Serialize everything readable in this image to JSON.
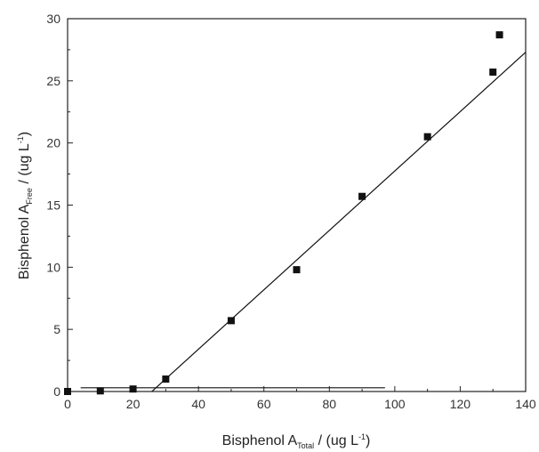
{
  "chart_data": {
    "type": "scatter",
    "xlabel": {
      "main": "Bisphenol A",
      "sub": "Total",
      "unit_pre": " / (ug L",
      "sup": "-1",
      "unit_post": ")"
    },
    "ylabel": {
      "main": "Bisphenol A",
      "sub": "Free",
      "unit_pre": " / (ug L",
      "sup": "-1",
      "unit_post": ")"
    },
    "xlim": [
      0,
      140
    ],
    "ylim": [
      0,
      30
    ],
    "x_ticks": [
      0,
      20,
      40,
      60,
      80,
      100,
      120,
      140
    ],
    "y_ticks": [
      0,
      5,
      10,
      15,
      20,
      25,
      30
    ],
    "grid": false,
    "series": [
      {
        "type": "scatter",
        "marker": "square",
        "color": "#111111",
        "points": [
          {
            "x": 0,
            "y": 0.0
          },
          {
            "x": 10,
            "y": 0.05
          },
          {
            "x": 20,
            "y": 0.2
          },
          {
            "x": 30,
            "y": 1.0
          },
          {
            "x": 50,
            "y": 5.7
          },
          {
            "x": 70,
            "y": 9.8
          },
          {
            "x": 90,
            "y": 15.7
          },
          {
            "x": 110,
            "y": 20.5
          },
          {
            "x": 130,
            "y": 25.7
          },
          {
            "x": 132,
            "y": 28.7
          }
        ]
      }
    ],
    "lines": [
      {
        "type": "line",
        "color": "#111111",
        "x": [
          4,
          97
        ],
        "y": [
          0.3,
          0.3
        ]
      },
      {
        "type": "line",
        "color": "#111111",
        "x": [
          24.5,
          140
        ],
        "y": [
          -0.3,
          27.3
        ]
      }
    ]
  }
}
